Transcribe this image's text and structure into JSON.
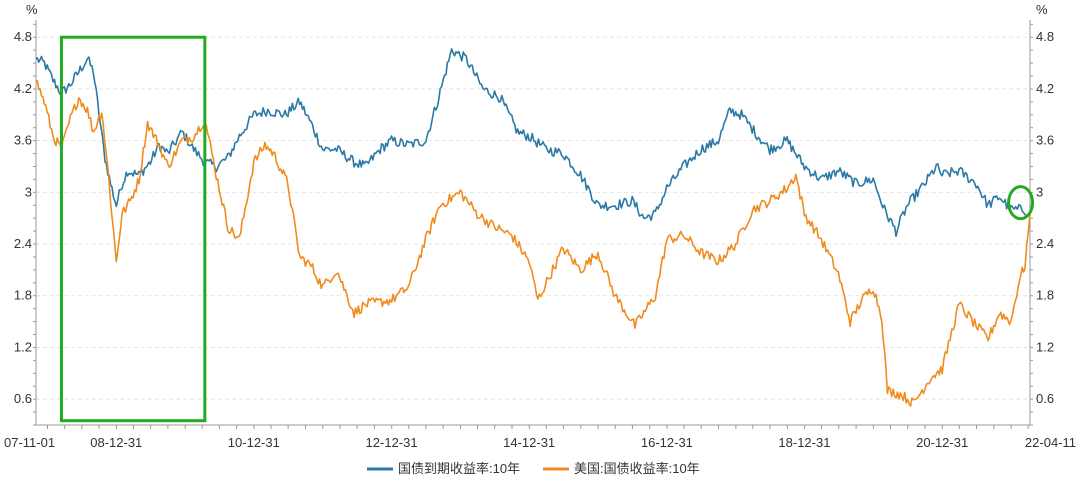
{
  "chart_data": {
    "type": "line",
    "y_unit_left": "%",
    "y_unit_right": "%",
    "ylim": [
      0.3,
      5.0
    ],
    "yticks": [
      0.6,
      1.2,
      1.8,
      2.4,
      3,
      3.6,
      4.2,
      4.8
    ],
    "ytick_labels": [
      "0.6",
      "1.2",
      "1.8",
      "2.4",
      "3",
      "3.6",
      "4.2",
      "4.8"
    ],
    "xtick_labels": [
      "07-11-01",
      "08-12-31",
      "10-12-31",
      "12-12-31",
      "14-12-31",
      "16-12-31",
      "18-12-31",
      "20-12-31",
      "22-04-11"
    ],
    "xtick_dates": [
      "2007-11-01",
      "2008-12-31",
      "2010-12-31",
      "2012-12-31",
      "2014-12-31",
      "2016-12-31",
      "2018-12-31",
      "2020-12-31",
      "2022-04-11"
    ],
    "xlim": [
      "2007-11-01",
      "2022-04-11"
    ],
    "grid": "horizontal dashed",
    "legend_position": "bottom",
    "annotations": [
      {
        "shape": "rectangle",
        "color": "#22aa22",
        "x_from": "2008-03-15",
        "x_to": "2010-04-15",
        "y_from": 0.35,
        "y_to": 4.8
      },
      {
        "shape": "ellipse",
        "color": "#22aa22",
        "x_center": "2022-02-20",
        "y_center": 2.88
      }
    ],
    "series": [
      {
        "name": "国债到期收益率:10年",
        "color": "#2a7aa5",
        "points": [
          [
            "2007-11-01",
            4.55
          ],
          [
            "2007-12-15",
            4.5
          ],
          [
            "2008-01-31",
            4.3
          ],
          [
            "2008-03-15",
            4.15
          ],
          [
            "2008-05-01",
            4.25
          ],
          [
            "2008-06-15",
            4.4
          ],
          [
            "2008-07-31",
            4.55
          ],
          [
            "2008-09-01",
            4.4
          ],
          [
            "2008-10-01",
            3.9
          ],
          [
            "2008-11-01",
            3.4
          ],
          [
            "2008-12-01",
            3.1
          ],
          [
            "2008-12-31",
            2.85
          ],
          [
            "2009-01-31",
            3.1
          ],
          [
            "2009-03-01",
            3.25
          ],
          [
            "2009-04-30",
            3.2
          ],
          [
            "2009-06-30",
            3.35
          ],
          [
            "2009-08-15",
            3.55
          ],
          [
            "2009-10-01",
            3.45
          ],
          [
            "2009-12-15",
            3.7
          ],
          [
            "2010-02-15",
            3.5
          ],
          [
            "2010-04-15",
            3.35
          ],
          [
            "2010-06-15",
            3.3
          ],
          [
            "2010-08-15",
            3.4
          ],
          [
            "2010-10-15",
            3.65
          ],
          [
            "2010-12-31",
            3.9
          ],
          [
            "2011-03-15",
            3.95
          ],
          [
            "2011-06-15",
            3.9
          ],
          [
            "2011-08-31",
            4.05
          ],
          [
            "2011-10-31",
            3.8
          ],
          [
            "2011-12-31",
            3.5
          ],
          [
            "2012-03-15",
            3.5
          ],
          [
            "2012-06-15",
            3.35
          ],
          [
            "2012-08-15",
            3.3
          ],
          [
            "2012-10-31",
            3.5
          ],
          [
            "2012-12-31",
            3.6
          ],
          [
            "2013-03-31",
            3.55
          ],
          [
            "2013-06-30",
            3.6
          ],
          [
            "2013-08-31",
            4.05
          ],
          [
            "2013-11-15",
            4.65
          ],
          [
            "2014-01-31",
            4.55
          ],
          [
            "2014-04-30",
            4.2
          ],
          [
            "2014-07-31",
            4.1
          ],
          [
            "2014-10-31",
            3.7
          ],
          [
            "2014-12-31",
            3.65
          ],
          [
            "2015-03-31",
            3.5
          ],
          [
            "2015-06-30",
            3.45
          ],
          [
            "2015-09-30",
            3.2
          ],
          [
            "2015-12-31",
            2.85
          ],
          [
            "2016-03-31",
            2.85
          ],
          [
            "2016-06-30",
            2.9
          ],
          [
            "2016-08-31",
            2.7
          ],
          [
            "2016-10-31",
            2.75
          ],
          [
            "2016-12-31",
            3.05
          ],
          [
            "2017-03-31",
            3.3
          ],
          [
            "2017-06-30",
            3.5
          ],
          [
            "2017-09-30",
            3.6
          ],
          [
            "2017-11-30",
            3.95
          ],
          [
            "2018-01-31",
            3.9
          ],
          [
            "2018-04-30",
            3.65
          ],
          [
            "2018-06-30",
            3.5
          ],
          [
            "2018-09-30",
            3.6
          ],
          [
            "2018-12-31",
            3.3
          ],
          [
            "2019-03-31",
            3.15
          ],
          [
            "2019-06-30",
            3.25
          ],
          [
            "2019-09-30",
            3.1
          ],
          [
            "2019-12-31",
            3.15
          ],
          [
            "2020-02-28",
            2.8
          ],
          [
            "2020-04-30",
            2.55
          ],
          [
            "2020-06-30",
            2.85
          ],
          [
            "2020-09-30",
            3.1
          ],
          [
            "2020-11-30",
            3.3
          ],
          [
            "2020-12-31",
            3.2
          ],
          [
            "2021-03-31",
            3.25
          ],
          [
            "2021-06-30",
            3.1
          ],
          [
            "2021-08-31",
            2.85
          ],
          [
            "2021-10-31",
            2.95
          ],
          [
            "2021-12-31",
            2.8
          ],
          [
            "2022-02-28",
            2.8
          ],
          [
            "2022-04-11",
            2.77
          ]
        ]
      },
      {
        "name": "美国:国债收益率:10年",
        "color": "#f08c1e",
        "points": [
          [
            "2007-11-01",
            4.3
          ],
          [
            "2007-12-15",
            4.05
          ],
          [
            "2008-01-31",
            3.65
          ],
          [
            "2008-03-15",
            3.5
          ],
          [
            "2008-05-01",
            3.85
          ],
          [
            "2008-06-15",
            4.1
          ],
          [
            "2008-07-31",
            3.95
          ],
          [
            "2008-09-01",
            3.7
          ],
          [
            "2008-10-15",
            3.95
          ],
          [
            "2008-11-15",
            3.3
          ],
          [
            "2008-12-31",
            2.2
          ],
          [
            "2009-01-31",
            2.75
          ],
          [
            "2009-03-15",
            2.9
          ],
          [
            "2009-05-01",
            3.15
          ],
          [
            "2009-06-15",
            3.8
          ],
          [
            "2009-08-15",
            3.55
          ],
          [
            "2009-10-01",
            3.3
          ],
          [
            "2009-12-15",
            3.6
          ],
          [
            "2010-02-15",
            3.65
          ],
          [
            "2010-04-15",
            3.85
          ],
          [
            "2010-06-15",
            3.2
          ],
          [
            "2010-08-15",
            2.6
          ],
          [
            "2010-10-15",
            2.45
          ],
          [
            "2010-12-31",
            3.35
          ],
          [
            "2011-02-28",
            3.55
          ],
          [
            "2011-04-15",
            3.45
          ],
          [
            "2011-06-30",
            3.1
          ],
          [
            "2011-08-31",
            2.25
          ],
          [
            "2011-10-31",
            2.15
          ],
          [
            "2011-12-31",
            1.9
          ],
          [
            "2012-03-15",
            2.1
          ],
          [
            "2012-06-15",
            1.6
          ],
          [
            "2012-08-15",
            1.7
          ],
          [
            "2012-12-31",
            1.75
          ],
          [
            "2013-03-31",
            1.9
          ],
          [
            "2013-06-30",
            2.45
          ],
          [
            "2013-09-15",
            2.85
          ],
          [
            "2013-12-31",
            3.0
          ],
          [
            "2014-03-31",
            2.75
          ],
          [
            "2014-06-30",
            2.6
          ],
          [
            "2014-09-30",
            2.5
          ],
          [
            "2014-12-31",
            2.2
          ],
          [
            "2015-02-15",
            1.75
          ],
          [
            "2015-06-30",
            2.35
          ],
          [
            "2015-09-30",
            2.1
          ],
          [
            "2015-12-31",
            2.3
          ],
          [
            "2016-03-31",
            1.8
          ],
          [
            "2016-07-15",
            1.45
          ],
          [
            "2016-10-31",
            1.8
          ],
          [
            "2016-12-31",
            2.45
          ],
          [
            "2017-03-31",
            2.5
          ],
          [
            "2017-06-30",
            2.3
          ],
          [
            "2017-09-30",
            2.2
          ],
          [
            "2017-12-31",
            2.4
          ],
          [
            "2018-03-31",
            2.8
          ],
          [
            "2018-06-30",
            2.9
          ],
          [
            "2018-09-30",
            3.05
          ],
          [
            "2018-11-15",
            3.2
          ],
          [
            "2018-12-31",
            2.75
          ],
          [
            "2019-03-31",
            2.45
          ],
          [
            "2019-06-30",
            2.05
          ],
          [
            "2019-08-31",
            1.5
          ],
          [
            "2019-10-31",
            1.75
          ],
          [
            "2019-12-31",
            1.9
          ],
          [
            "2020-02-15",
            1.55
          ],
          [
            "2020-03-15",
            0.7
          ],
          [
            "2020-05-31",
            0.65
          ],
          [
            "2020-07-31",
            0.55
          ],
          [
            "2020-10-31",
            0.85
          ],
          [
            "2020-12-31",
            0.95
          ],
          [
            "2021-02-28",
            1.45
          ],
          [
            "2021-03-31",
            1.7
          ],
          [
            "2021-06-30",
            1.45
          ],
          [
            "2021-08-31",
            1.3
          ],
          [
            "2021-10-31",
            1.6
          ],
          [
            "2021-12-31",
            1.5
          ],
          [
            "2022-02-15",
            2.0
          ],
          [
            "2022-03-15",
            2.15
          ],
          [
            "2022-04-11",
            2.75
          ]
        ]
      }
    ]
  }
}
